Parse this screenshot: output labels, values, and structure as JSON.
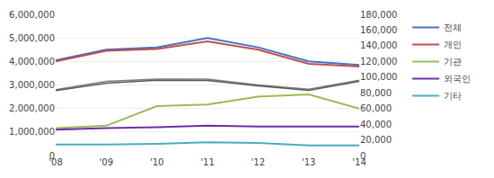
{
  "chart_data": {
    "type": "line",
    "categories": [
      "'08",
      "'09",
      "'10",
      "'11",
      "'12",
      "'13",
      "'14"
    ],
    "series": [
      {
        "name": "전체",
        "color": "#4472c4",
        "values": [
          4050000,
          4500000,
          4600000,
          5000000,
          4600000,
          4000000,
          3850000
        ]
      },
      {
        "name": "개인",
        "color": "#c0504d",
        "values": [
          4000000,
          4450000,
          4530000,
          4850000,
          4500000,
          3900000,
          3780000
        ]
      },
      {
        "color": "#7f7f7f",
        "values": [
          2800000,
          3150000,
          3250000,
          3250000,
          3000000,
          2820000,
          3200000
        ]
      },
      {
        "color": "#595959",
        "values": [
          2760000,
          3080000,
          3200000,
          3190000,
          2960000,
          2770000,
          3150000
        ]
      },
      {
        "name": "기관",
        "color": "#9bbb59",
        "axis": "y2",
        "values": [
          35000,
          38000,
          63000,
          65000,
          75000,
          78000,
          60000
        ]
      },
      {
        "name": "외국인",
        "color": "#7030a0",
        "axis": "y2",
        "values": [
          33000,
          35000,
          36000,
          38000,
          37000,
          37000,
          37000
        ]
      },
      {
        "name": "기타",
        "color": "#4bacc6",
        "axis": "y2",
        "values": [
          14000,
          14000,
          15000,
          17000,
          16000,
          13000,
          13000
        ]
      }
    ],
    "ylim": [
      0,
      6000000
    ],
    "yticks": [
      0,
      {
        "value": 1000000,
        "label": "1,000,000"
      },
      {
        "value": 2000000,
        "label": "2,000,000"
      },
      {
        "value": 3000000,
        "label": "3,000,000"
      },
      {
        "value": 4000000,
        "label": "4,000,000"
      },
      {
        "value": 5000000,
        "label": "5,000,000"
      },
      {
        "value": 6000000,
        "label": "6,000,000"
      }
    ],
    "y2lim": [
      0,
      180000
    ],
    "y2ticks": [
      0,
      {
        "value": 20000,
        "label": "20,000"
      },
      {
        "value": 40000,
        "label": "40,000"
      },
      {
        "value": 60000,
        "label": "60,000"
      },
      {
        "value": 80000,
        "label": "80,000"
      },
      {
        "value": 100000,
        "label": "100,000"
      },
      {
        "value": 120000,
        "label": "120,000"
      },
      {
        "value": 140000,
        "label": "140,000"
      },
      {
        "value": 160000,
        "label": "160,000"
      },
      {
        "value": 180000,
        "label": "180,000"
      }
    ],
    "grid": true,
    "legend": "upper right"
  }
}
